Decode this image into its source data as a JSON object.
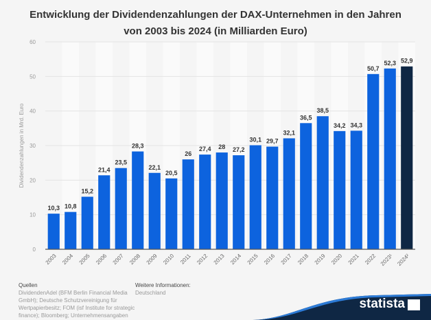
{
  "title_line1": "Entwicklung der Dividendenzahlungen der DAX-Unternehmen in den Jahren",
  "title_line2": "von 2003 bis 2024 (in Milliarden Euro)",
  "chart_data": {
    "type": "bar",
    "ylabel": "Dividendenzahlungen in Mrd. Euro",
    "ylim": [
      0,
      60
    ],
    "yticks": [
      0,
      10,
      20,
      30,
      40,
      50,
      60
    ],
    "grid": true,
    "categories": [
      "2003",
      "2004",
      "2005",
      "2006",
      "2007",
      "2008",
      "2009",
      "2010",
      "2011",
      "2012",
      "2013",
      "2014",
      "2015",
      "2016",
      "2017",
      "2018",
      "2019",
      "2020",
      "2021",
      "2022",
      "2023¹",
      "2024²"
    ],
    "values": [
      10.3,
      10.8,
      15.2,
      21.4,
      23.5,
      28.3,
      22.1,
      20.5,
      26,
      27.4,
      28,
      27.2,
      30.1,
      29.7,
      32.1,
      36.5,
      38.5,
      34.2,
      34.3,
      50.7,
      52.3,
      52.9
    ],
    "labels": [
      "10,3",
      "10,8",
      "15,2",
      "21,4",
      "23,5",
      "28,3",
      "22,1",
      "20,5",
      "26",
      "27,4",
      "28",
      "27,2",
      "30,1",
      "29,7",
      "32,1",
      "36,5",
      "38,5",
      "34,2",
      "34,3",
      "50,7",
      "52,3",
      "52,9"
    ],
    "colors": {
      "bar": "#0d63de",
      "highlight": "#0f2744"
    },
    "highlight_index": 21
  },
  "footer": {
    "sources_label": "Quellen",
    "sources": [
      "DividendenAdel (BFM Berlin Financial Media",
      "GmbH); Deutsche Schutzvereinigung für",
      "Wertpapierbesitz; FOM (isf Institute for strategic",
      "finance); Bloomberg; Unternehmensangaben"
    ],
    "info_label": "Weitere Informationen:",
    "info": "Deutschland",
    "brand": "statista"
  }
}
